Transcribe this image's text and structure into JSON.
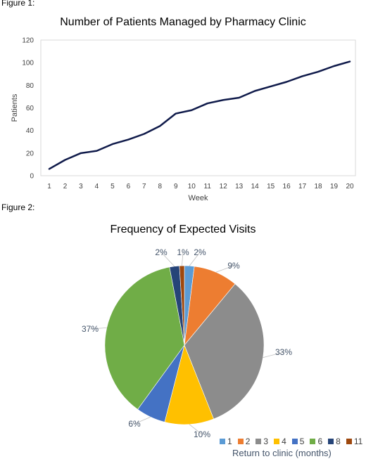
{
  "figure1_label": "Figure 1:",
  "figure2_label": "Figure 2:",
  "chart_data": [
    {
      "type": "line",
      "title": "Number of Patients Managed by Pharmacy Clinic",
      "xlabel": "Week",
      "ylabel": "Patients",
      "x": [
        1,
        2,
        3,
        4,
        5,
        6,
        7,
        8,
        9,
        10,
        11,
        12,
        13,
        14,
        15,
        16,
        17,
        18,
        19,
        20
      ],
      "series": [
        {
          "values": [
            6,
            14,
            20,
            22,
            28,
            32,
            37,
            44,
            55,
            58,
            64,
            67,
            69,
            75,
            79,
            83,
            88,
            92,
            97,
            101
          ],
          "color": "#0f1a4a"
        }
      ],
      "ylim": [
        0,
        120
      ],
      "yticks": [
        0,
        20,
        40,
        60,
        80,
        100,
        120
      ],
      "grid": false
    },
    {
      "type": "pie",
      "title": "Frequency of Expected Visits",
      "legend_title": "Return to clinic (months)",
      "legend_position": "bottom-right",
      "slices": [
        {
          "label": "1",
          "value": 2,
          "pct_label": "2%",
          "color": "#5b9bd5"
        },
        {
          "label": "2",
          "value": 9,
          "pct_label": "9%",
          "color": "#ed7d31"
        },
        {
          "label": "3",
          "value": 33,
          "pct_label": "33%",
          "color": "#8c8c8c"
        },
        {
          "label": "4",
          "value": 10,
          "pct_label": "10%",
          "color": "#ffc000"
        },
        {
          "label": "5",
          "value": 6,
          "pct_label": "6%",
          "color": "#4472c4"
        },
        {
          "label": "6",
          "value": 37,
          "pct_label": "37%",
          "color": "#70ad47"
        },
        {
          "label": "8",
          "value": 2,
          "pct_label": "2%",
          "color": "#264478"
        },
        {
          "label": "11",
          "value": 1,
          "pct_label": "1%",
          "color": "#9e480e"
        }
      ]
    }
  ]
}
